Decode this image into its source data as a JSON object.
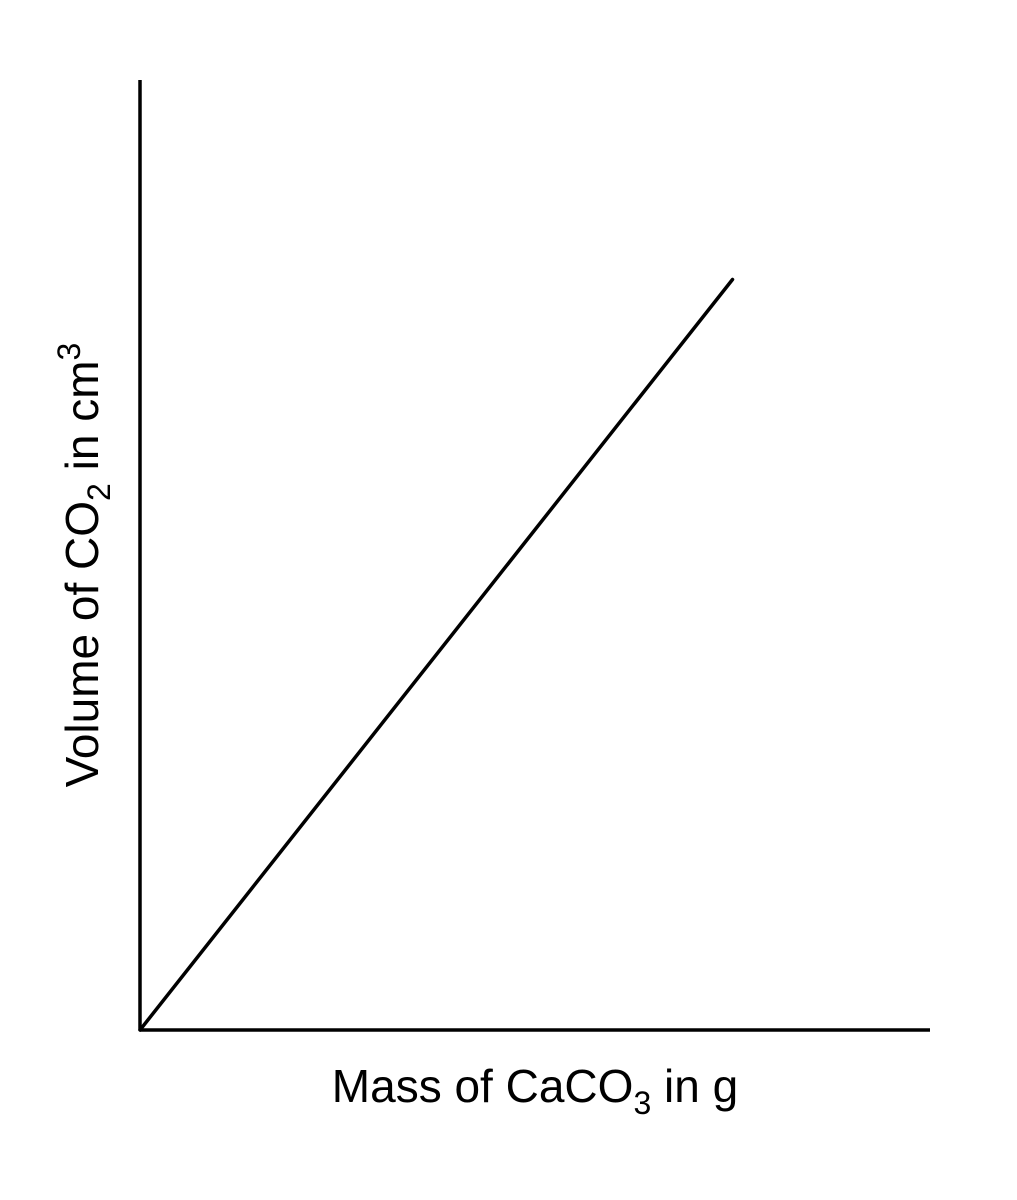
{
  "chart_data": {
    "type": "line",
    "title": "",
    "xlabel": {
      "prefix": "Mass of CaCO",
      "subscript": "3",
      "suffix": " in g"
    },
    "ylabel": {
      "prefix": "Volume of CO",
      "subscript": "2",
      "middle": " in cm",
      "superscript": "3"
    },
    "xlim": [
      0,
      1
    ],
    "ylim": [
      0,
      1
    ],
    "ticks": false,
    "grid": false,
    "legend": "none",
    "series": [
      {
        "x": [
          0,
          0.75
        ],
        "y": [
          0,
          0.79
        ]
      }
    ],
    "colors": {
      "axis": "#000000",
      "line": "#000000",
      "background": "#ffffff"
    }
  }
}
